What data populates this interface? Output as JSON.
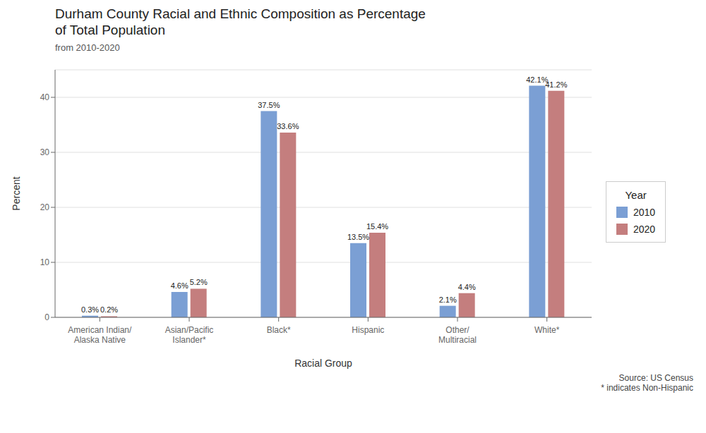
{
  "chart_data": {
    "type": "bar",
    "title": "Durham County Racial and Ethnic Composition as Percentage\nof Total Population",
    "subtitle": "from 2010-2020",
    "xlabel": "Racial Group",
    "ylabel": "Percent",
    "categories": [
      "American Indian/\nAlaska Native",
      "Asian/Pacific\nIslander*",
      "Black*",
      "Hispanic",
      "Other/\nMultiracial",
      "White*"
    ],
    "series": [
      {
        "name": "2010",
        "color": "#7b9fd4",
        "values": [
          0.3,
          4.6,
          37.5,
          13.5,
          2.1,
          42.1
        ],
        "value_labels": [
          "0.3%",
          "4.6%",
          "37.5%",
          "13.5%",
          "2.1%",
          "42.1%"
        ]
      },
      {
        "name": "2020",
        "color": "#c47e7e",
        "values": [
          0.2,
          5.2,
          33.6,
          15.4,
          4.4,
          41.2
        ],
        "value_labels": [
          "0.2%",
          "5.2%",
          "33.6%",
          "15.4%",
          "4.4%",
          "41.2%"
        ]
      }
    ],
    "ylim": [
      0,
      45
    ],
    "yticks": [
      0,
      10,
      20,
      30,
      40
    ],
    "grid": true,
    "data_labels": true,
    "legend": "right",
    "legend_title": "Year",
    "annotations": [
      "Source: US Census\n* indicates Non-Hispanic"
    ]
  }
}
